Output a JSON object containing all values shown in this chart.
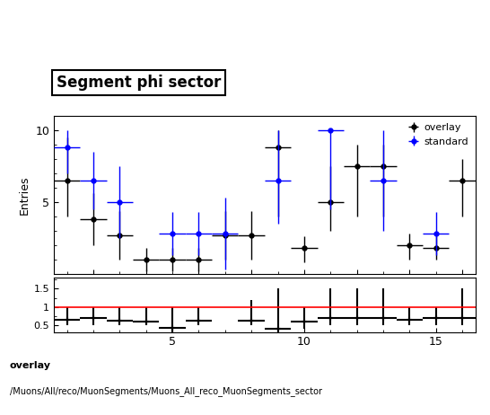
{
  "title": "Segment phi sector",
  "ylabel_main": "Entries",
  "footnote_line1": "overlay",
  "footnote_line2": "/Muons/All/reco/MuonSegments/Muons_All_reco_MuonSegments_sector",
  "legend_overlay": "overlay",
  "legend_standard": "standard",
  "overlay_color": "black",
  "standard_color": "blue",
  "main_ylim": [
    0,
    11
  ],
  "ratio_ylim": [
    0.3,
    1.8
  ],
  "ratio_yticks": [
    0.5,
    1.0,
    1.5
  ],
  "overlay_x": [
    1,
    2,
    3,
    4,
    5,
    6,
    7,
    8,
    9,
    10,
    11,
    12,
    13,
    14,
    15,
    16
  ],
  "overlay_y": [
    6.5,
    3.8,
    2.7,
    1.0,
    1.0,
    1.0,
    2.7,
    2.7,
    8.8,
    1.8,
    5.0,
    7.5,
    7.5,
    2.0,
    1.8,
    6.5
  ],
  "overlay_xerr": [
    0.5,
    0.5,
    0.5,
    0.5,
    0.5,
    0.5,
    0.5,
    0.5,
    0.5,
    0.5,
    0.5,
    0.5,
    0.5,
    0.5,
    0.5,
    0.5
  ],
  "overlay_yerr_lo": [
    2.5,
    1.8,
    1.7,
    0.8,
    0.8,
    0.8,
    1.7,
    1.7,
    4.8,
    1.0,
    2.0,
    3.5,
    3.5,
    1.0,
    0.8,
    2.5
  ],
  "overlay_yerr_hi": [
    3.0,
    1.8,
    1.7,
    0.8,
    0.8,
    0.8,
    1.7,
    1.7,
    1.2,
    0.8,
    2.5,
    1.5,
    1.5,
    0.8,
    0.8,
    1.5
  ],
  "standard_x": [
    1,
    2,
    3,
    5,
    6,
    7,
    9,
    11,
    13,
    15
  ],
  "standard_y": [
    8.8,
    6.5,
    5.0,
    2.8,
    2.8,
    2.8,
    6.5,
    10.0,
    6.5,
    2.8
  ],
  "standard_xerr": [
    0.5,
    0.5,
    0.5,
    0.5,
    0.5,
    0.5,
    0.5,
    0.5,
    0.5,
    0.5
  ],
  "standard_yerr_lo": [
    1.8,
    2.0,
    2.5,
    1.5,
    1.5,
    2.5,
    3.0,
    5.5,
    3.5,
    1.5
  ],
  "standard_yerr_hi": [
    1.2,
    2.0,
    2.5,
    1.5,
    1.5,
    2.5,
    3.5,
    0.0,
    3.5,
    1.5
  ],
  "ratio_x": [
    1,
    2,
    3,
    4,
    5,
    6,
    8,
    9,
    10,
    11,
    12,
    13,
    14,
    15,
    16
  ],
  "ratio_y": [
    0.65,
    0.68,
    0.62,
    0.58,
    0.42,
    0.62,
    0.62,
    0.4,
    0.58,
    0.7,
    0.7,
    0.7,
    0.65,
    0.68,
    0.7
  ],
  "ratio_xerr": [
    0.5,
    0.5,
    0.5,
    0.5,
    0.5,
    0.5,
    0.5,
    0.5,
    0.5,
    0.5,
    0.5,
    0.5,
    0.5,
    0.5,
    0.5
  ],
  "ratio_yerr_lo": [
    0.15,
    0.18,
    0.12,
    0.08,
    0.12,
    0.12,
    0.12,
    0.1,
    0.18,
    0.2,
    0.2,
    0.2,
    0.15,
    0.18,
    0.2
  ],
  "ratio_yerr_hi": [
    0.35,
    0.32,
    0.38,
    0.42,
    0.58,
    0.38,
    0.58,
    1.1,
    0.42,
    0.8,
    0.8,
    0.8,
    0.35,
    0.32,
    0.8
  ],
  "main_yticks": [
    5,
    10
  ],
  "xmin": 0.5,
  "xmax": 16.5,
  "xtick_positions": [
    5,
    10,
    15
  ]
}
